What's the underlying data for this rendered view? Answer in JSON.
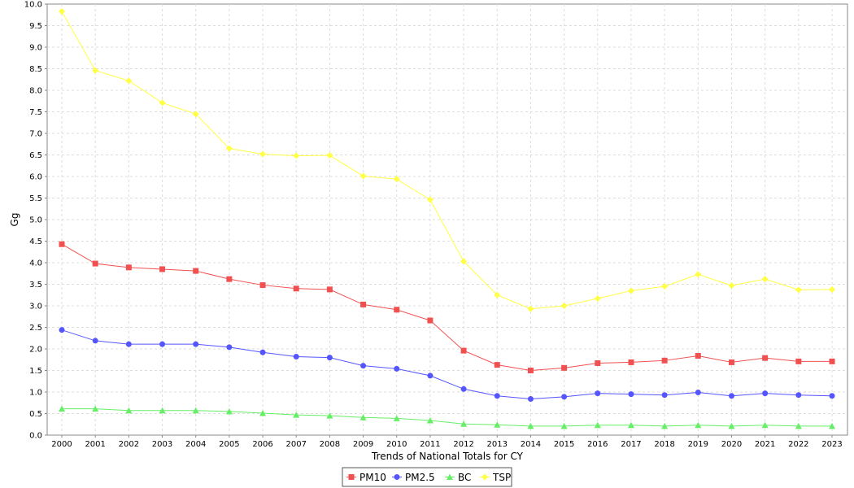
{
  "chart_data": {
    "type": "line",
    "title": "",
    "xlabel": "Trends of National Totals for CY",
    "ylabel": "Gg",
    "x": [
      "2000",
      "2001",
      "2002",
      "2003",
      "2004",
      "2005",
      "2006",
      "2007",
      "2008",
      "2009",
      "2010",
      "2011",
      "2012",
      "2013",
      "2014",
      "2015",
      "2016",
      "2017",
      "2018",
      "2019",
      "2020",
      "2021",
      "2022",
      "2023"
    ],
    "ylim": [
      0,
      10
    ],
    "yticks": [
      0.0,
      0.5,
      1.0,
      1.5,
      2.0,
      2.5,
      3.0,
      3.5,
      4.0,
      4.5,
      5.0,
      5.5,
      6.0,
      6.5,
      7.0,
      7.5,
      8.0,
      8.5,
      9.0,
      9.5,
      10.0
    ],
    "grid": true,
    "legend_position": "bottom-center",
    "series": [
      {
        "name": "PM10",
        "color": "#f05050",
        "marker": "square",
        "values": [
          4.43,
          3.98,
          3.89,
          3.85,
          3.81,
          3.62,
          3.48,
          3.4,
          3.38,
          3.03,
          2.91,
          2.66,
          1.96,
          1.63,
          1.5,
          1.56,
          1.67,
          1.69,
          1.73,
          1.84,
          1.69,
          1.79,
          1.71,
          1.71
        ]
      },
      {
        "name": "PM2.5",
        "color": "#5555ff",
        "marker": "circle",
        "values": [
          2.44,
          2.19,
          2.11,
          2.11,
          2.11,
          2.04,
          1.92,
          1.82,
          1.8,
          1.61,
          1.54,
          1.38,
          1.07,
          0.91,
          0.84,
          0.89,
          0.97,
          0.95,
          0.93,
          0.99,
          0.91,
          0.97,
          0.93,
          0.91
        ]
      },
      {
        "name": "BC",
        "color": "#66ee66",
        "marker": "triangle",
        "values": [
          0.61,
          0.61,
          0.57,
          0.57,
          0.57,
          0.55,
          0.51,
          0.47,
          0.45,
          0.41,
          0.39,
          0.34,
          0.26,
          0.24,
          0.21,
          0.21,
          0.23,
          0.23,
          0.21,
          0.23,
          0.21,
          0.23,
          0.21,
          0.21
        ]
      },
      {
        "name": "TSP",
        "color": "#ffff44",
        "marker": "diamond",
        "values": [
          9.83,
          8.46,
          8.22,
          7.71,
          7.45,
          6.65,
          6.52,
          6.48,
          6.49,
          6.01,
          5.94,
          5.46,
          4.03,
          3.25,
          2.93,
          3.0,
          3.17,
          3.35,
          3.45,
          3.73,
          3.47,
          3.62,
          3.37,
          3.38
        ]
      }
    ]
  }
}
